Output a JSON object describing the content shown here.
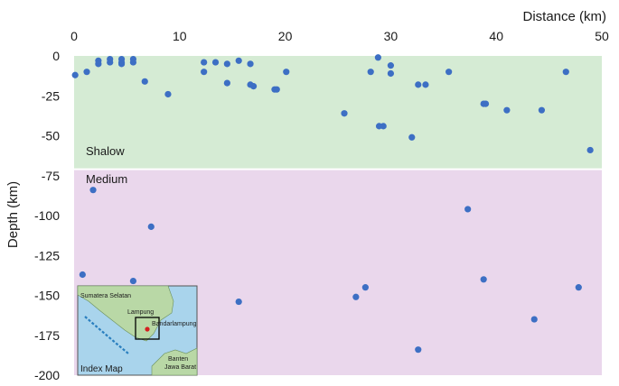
{
  "chart_data": {
    "type": "scatter",
    "xlabel": "Distance (km)",
    "ylabel": "Depth (km)",
    "xlim": [
      0,
      50
    ],
    "ylim": [
      -200,
      0
    ],
    "x_ticks": [
      "0",
      "10",
      "20",
      "30",
      "40",
      "50"
    ],
    "y_ticks": [
      "0",
      "-25",
      "-50",
      "-75",
      "-100",
      "-125",
      "-150",
      "-175",
      "-200"
    ],
    "x_axis_position": "top",
    "grid": false,
    "marker_color": "#3d6fc4",
    "zones": [
      {
        "name": "Shalow",
        "depth_range": [
          -71,
          0
        ],
        "color": "#d5ebd4"
      },
      {
        "name": "Medium",
        "depth_range": [
          -200,
          -71
        ],
        "color": "#ead7ec"
      }
    ],
    "points": [
      {
        "x": 0.1,
        "y": -12
      },
      {
        "x": 1.2,
        "y": -10
      },
      {
        "x": 2.3,
        "y": -3
      },
      {
        "x": 2.3,
        "y": -5
      },
      {
        "x": 3.4,
        "y": -2
      },
      {
        "x": 3.4,
        "y": -4
      },
      {
        "x": 4.5,
        "y": -2
      },
      {
        "x": 4.5,
        "y": -4
      },
      {
        "x": 4.5,
        "y": -5
      },
      {
        "x": 5.6,
        "y": -2
      },
      {
        "x": 5.6,
        "y": -4
      },
      {
        "x": 6.7,
        "y": -16
      },
      {
        "x": 8.9,
        "y": -24
      },
      {
        "x": 12.3,
        "y": -4
      },
      {
        "x": 12.3,
        "y": -10
      },
      {
        "x": 13.4,
        "y": -4
      },
      {
        "x": 14.5,
        "y": -5
      },
      {
        "x": 14.5,
        "y": -17
      },
      {
        "x": 15.6,
        "y": -3
      },
      {
        "x": 16.7,
        "y": -5
      },
      {
        "x": 16.7,
        "y": -18
      },
      {
        "x": 17.0,
        "y": -19
      },
      {
        "x": 19.0,
        "y": -21
      },
      {
        "x": 19.2,
        "y": -21
      },
      {
        "x": 20.1,
        "y": -10
      },
      {
        "x": 25.6,
        "y": -36
      },
      {
        "x": 28.1,
        "y": -10
      },
      {
        "x": 28.8,
        "y": -1
      },
      {
        "x": 28.9,
        "y": -44
      },
      {
        "x": 29.3,
        "y": -44
      },
      {
        "x": 30.0,
        "y": -6
      },
      {
        "x": 30.0,
        "y": -11
      },
      {
        "x": 32.0,
        "y": -51
      },
      {
        "x": 32.6,
        "y": -18
      },
      {
        "x": 33.3,
        "y": -18
      },
      {
        "x": 35.5,
        "y": -10
      },
      {
        "x": 38.8,
        "y": -30
      },
      {
        "x": 39.0,
        "y": -30
      },
      {
        "x": 41.0,
        "y": -34
      },
      {
        "x": 44.3,
        "y": -34
      },
      {
        "x": 46.6,
        "y": -10
      },
      {
        "x": 48.9,
        "y": -59
      },
      {
        "x": 1.8,
        "y": -84
      },
      {
        "x": 7.3,
        "y": -107
      },
      {
        "x": 37.3,
        "y": -96
      },
      {
        "x": 0.8,
        "y": -137
      },
      {
        "x": 5.6,
        "y": -141
      },
      {
        "x": 15.6,
        "y": -154
      },
      {
        "x": 26.7,
        "y": -151
      },
      {
        "x": 27.6,
        "y": -145
      },
      {
        "x": 32.6,
        "y": -184
      },
      {
        "x": 38.8,
        "y": -140
      },
      {
        "x": 43.6,
        "y": -165
      },
      {
        "x": 47.8,
        "y": -145
      }
    ]
  },
  "index_map": {
    "title": "Index Map",
    "labels": {
      "sumatera_selatan": "Sumatera Selatan",
      "lampung": "Lampung",
      "bandarlampung": "Bandarlampung",
      "banten": "Banten",
      "jawa_barat": "Jawa Barat"
    },
    "colors": {
      "sea": "#a9d4ec",
      "land": "#b9d8a6",
      "trench": "#2a7fbf",
      "box": "#000000",
      "marker": "#d42020"
    }
  }
}
